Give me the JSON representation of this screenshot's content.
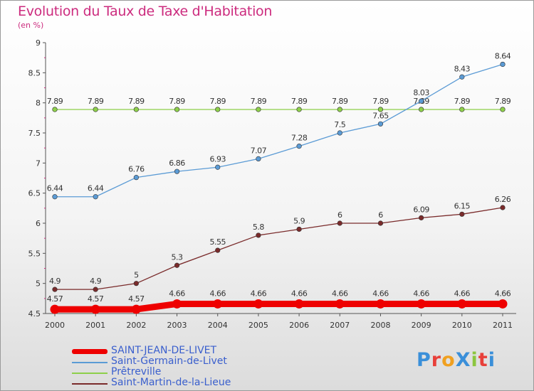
{
  "header": {
    "title": "Evolution du Taux de Taxe d'Habitation",
    "subtitle": "(en %)"
  },
  "logo": {
    "text": "ProXiti"
  },
  "chart_data": {
    "type": "line",
    "x": [
      2000,
      2001,
      2002,
      2003,
      2004,
      2005,
      2006,
      2007,
      2008,
      2009,
      2010,
      2011
    ],
    "ylim": [
      4.5,
      9
    ],
    "yticks": [
      4.5,
      5,
      5.5,
      6,
      6.5,
      7,
      7.5,
      8,
      8.5,
      9
    ],
    "grid": false,
    "legend_position": "bottom-left",
    "series": [
      {
        "name": "SAINT-JEAN-DE-LIVET",
        "color": "#ee0000",
        "values": [
          4.57,
          4.57,
          4.57,
          4.66,
          4.66,
          4.66,
          4.66,
          4.66,
          4.66,
          4.66,
          4.66,
          4.66
        ],
        "labels": [
          "4.57",
          "4.57",
          "4.57",
          "4.66",
          "4.66",
          "4.66",
          "4.66",
          "4.66",
          "4.66",
          "4.66",
          "4.66",
          "4.66"
        ]
      },
      {
        "name": "Saint-Germain-de-Livet",
        "color": "#5b9bd5",
        "values": [
          6.44,
          6.44,
          6.76,
          6.86,
          6.93,
          7.07,
          7.28,
          7.5,
          7.65,
          8.03,
          8.43,
          8.64
        ],
        "labels": [
          "6.44",
          "6.44",
          "6.76",
          "6.86",
          "6.93",
          "7.07",
          "7.28",
          "7.5",
          "7.65",
          "8.03",
          "8.43",
          "8.64"
        ]
      },
      {
        "name": "Prêtreville",
        "color": "#8ed04a",
        "values": [
          7.89,
          7.89,
          7.89,
          7.89,
          7.89,
          7.89,
          7.89,
          7.89,
          7.89,
          7.89,
          7.89,
          7.89
        ],
        "labels": [
          "7.89",
          "7.89",
          "7.89",
          "7.89",
          "7.89",
          "7.89",
          "7.89",
          "7.89",
          "7.89",
          "7.89",
          "7.89",
          "7.89"
        ]
      },
      {
        "name": "Saint-Martin-de-la-Lieue",
        "color": "#7a2b2b",
        "values": [
          4.9,
          4.9,
          5,
          5.3,
          5.55,
          5.8,
          5.9,
          6,
          6,
          6.09,
          6.15,
          6.26
        ],
        "labels": [
          "4.9",
          "4.9",
          "5",
          "5.3",
          "5.55",
          "5.8",
          "5.9",
          "6",
          "6",
          "6.09",
          "6.15",
          "6.26"
        ]
      }
    ]
  }
}
